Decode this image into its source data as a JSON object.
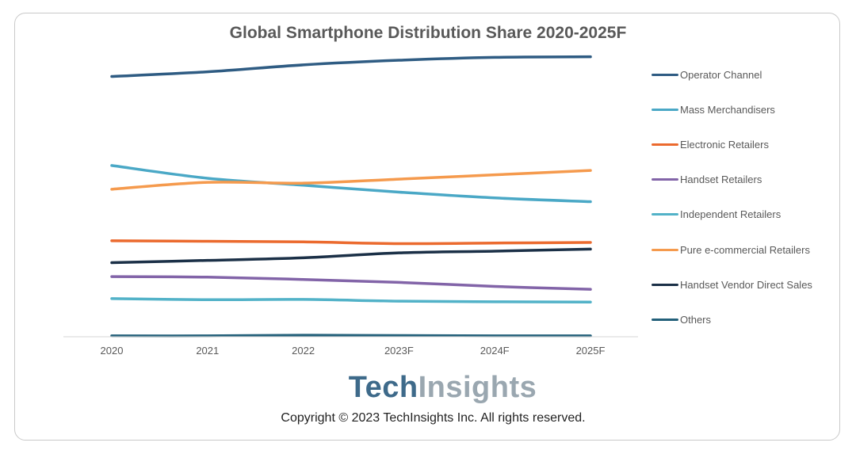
{
  "chart_data": {
    "type": "line",
    "title": "Global Smartphone Distribution Share 2020-2025F",
    "xlabel": "",
    "ylabel": "",
    "ylim": [
      0,
      100
    ],
    "grid": false,
    "legend_position": "right",
    "categories": [
      "2020",
      "2021",
      "2022",
      "2023F",
      "2024F",
      "2025F"
    ],
    "series": [
      {
        "name": "Operator Channel",
        "color": "#2f5c83",
        "values": [
          90,
          91.6,
          94,
          95.6,
          96.6,
          96.8
        ]
      },
      {
        "name": "Mass Merchandisers",
        "color": "#4aa8c6",
        "values": [
          59.2,
          54.8,
          52.4,
          50,
          48,
          46.7
        ]
      },
      {
        "name": "Electronic Retailers",
        "color": "#eb6a2e",
        "values": [
          33.2,
          33,
          32.8,
          32.2,
          32.4,
          32.6
        ]
      },
      {
        "name": "Handset Retailers",
        "color": "#8264a8",
        "values": [
          20.8,
          20.6,
          19.8,
          18.8,
          17.4,
          16.4
        ]
      },
      {
        "name": "Independent Retailers",
        "color": "#52b2c8",
        "values": [
          13.2,
          12.8,
          12.9,
          12.3,
          12.1,
          12
        ]
      },
      {
        "name": "Pure e-commercial Retailers",
        "color": "#f59a4d",
        "values": [
          51,
          53.4,
          53.1,
          54.5,
          56,
          57.5
        ]
      },
      {
        "name": "Handset Vendor Direct Sales",
        "color": "#1b3047",
        "values": [
          25.6,
          26.4,
          27.3,
          29,
          29.6,
          30.3
        ]
      },
      {
        "name": "Others",
        "color": "#23607a",
        "values": [
          0.3,
          0.3,
          0.5,
          0.4,
          0.3,
          0.3
        ]
      }
    ]
  },
  "brand": {
    "logo_part1": "Tech",
    "logo_part2": "Insights"
  },
  "copyright": "Copyright © 2023 TechInsights Inc.  All rights reserved."
}
